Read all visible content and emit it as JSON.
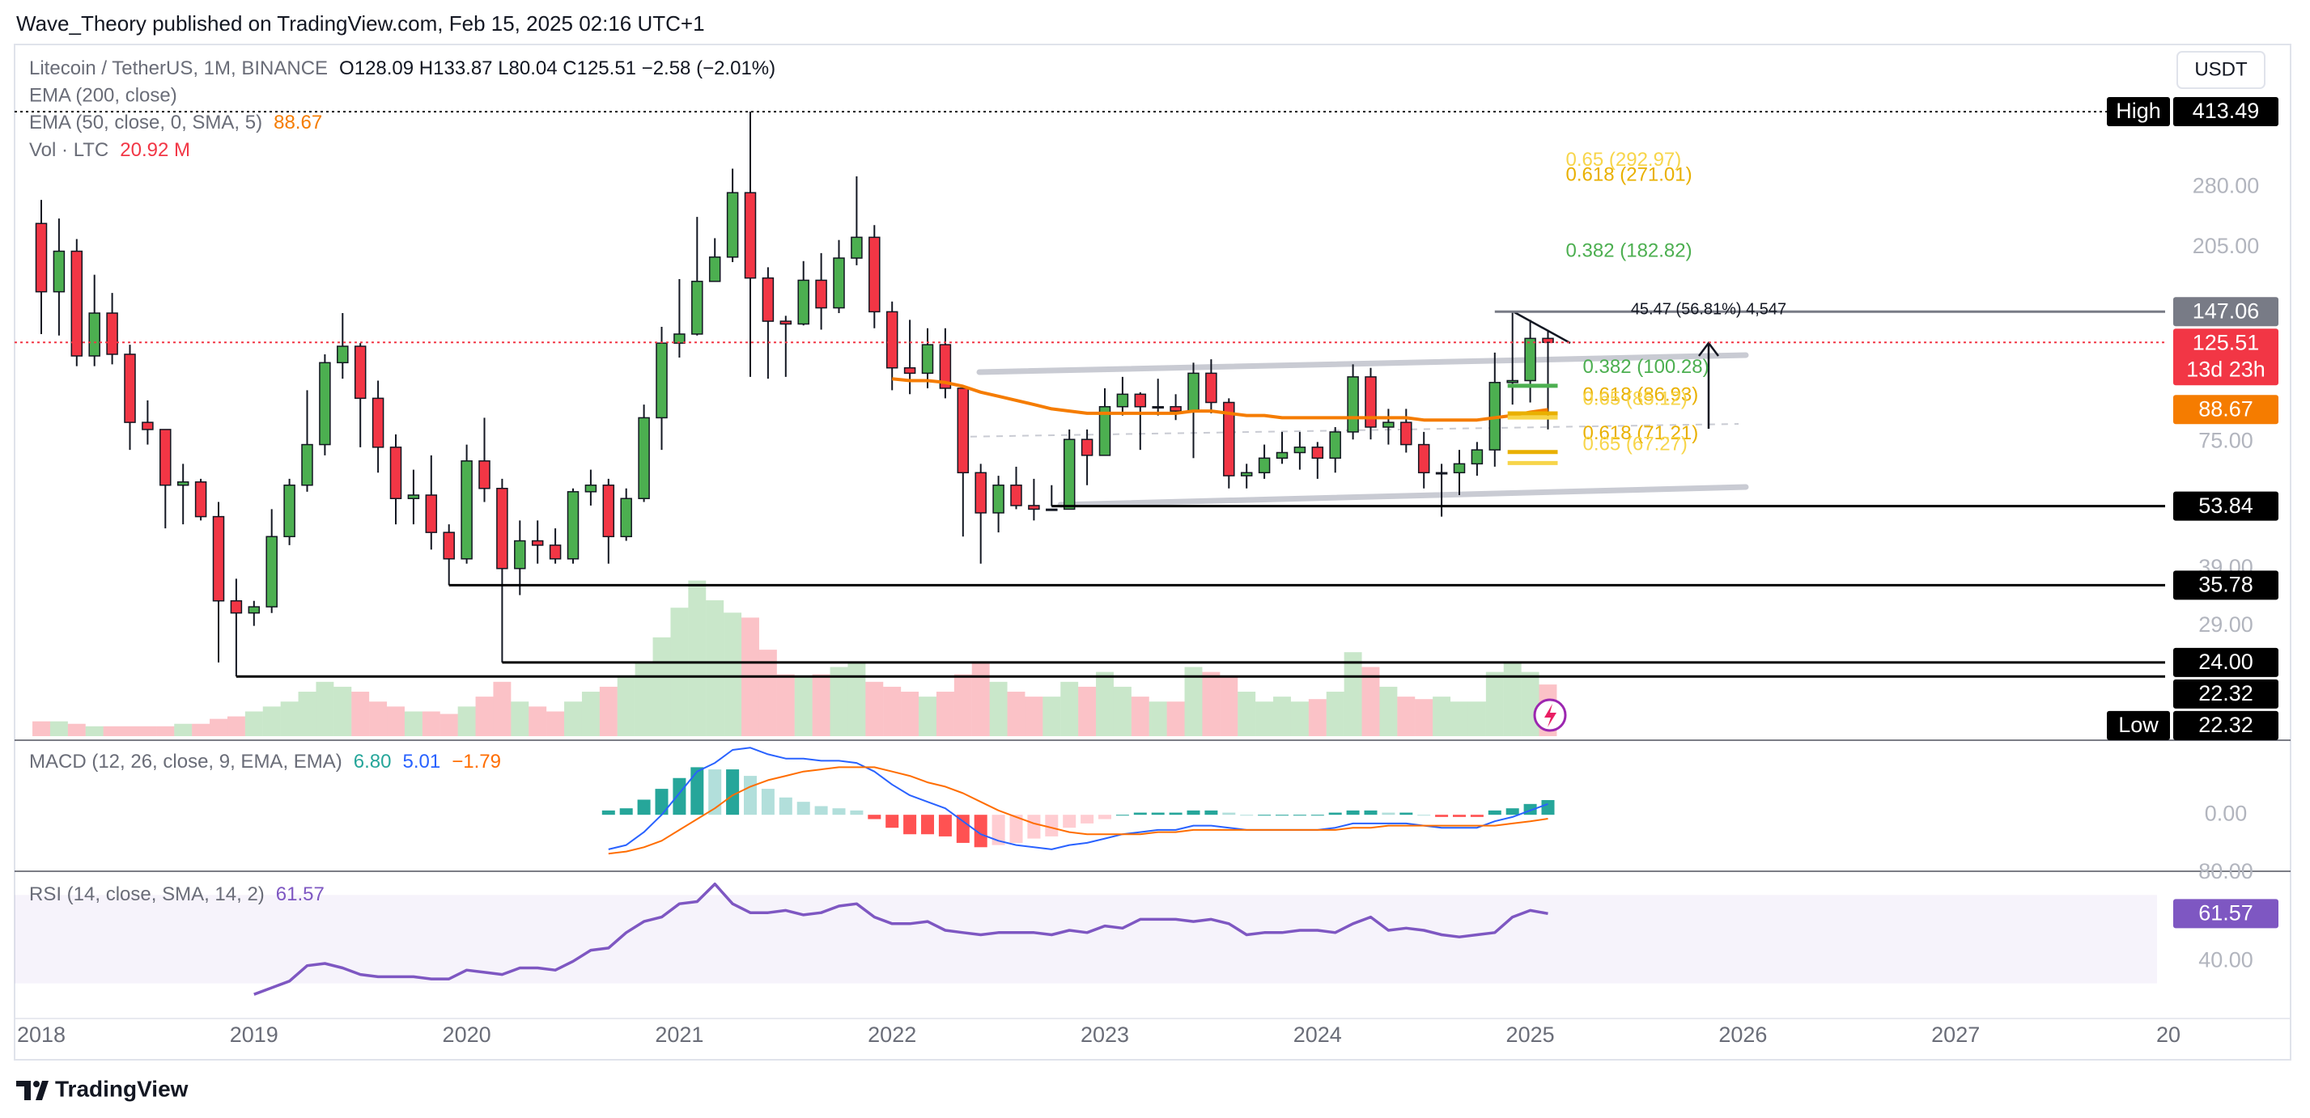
{
  "chart_data": {
    "type": "candlestick",
    "header": "Wave_Theory published on TradingView.com, Feb 15, 2025 02:16 UTC+1",
    "title": "Litecoin / TetherUS, 1M, BINANCE",
    "ohlc_text": "O128.09 H133.87 L80.04 C125.51 −2.58 (−2.01%)",
    "currency": "USDT",
    "brand": "TradingView",
    "log": true,
    "ylim": [
      16.4,
      585
    ],
    "yticks": [
      {
        "value": 280,
        "label": "280.00"
      },
      {
        "value": 205,
        "label": "205.00"
      },
      {
        "value": 75,
        "label": "75.00"
      },
      {
        "value": 39,
        "label": "39.00"
      },
      {
        "value": 29,
        "label": "29.00"
      }
    ],
    "xticks": [
      {
        "value": "2018-01",
        "label": "2018"
      },
      {
        "value": "2019-01",
        "label": "2019"
      },
      {
        "value": "2020-01",
        "label": "2020"
      },
      {
        "value": "2021-01",
        "label": "2021"
      },
      {
        "value": "2022-01",
        "label": "2022"
      },
      {
        "value": "2023-01",
        "label": "2023"
      },
      {
        "value": "2024-01",
        "label": "2024"
      },
      {
        "value": "2025-01",
        "label": "2025"
      },
      {
        "value": "2026-01",
        "label": "2026"
      },
      {
        "value": "2027-01",
        "label": "2027"
      },
      {
        "value": "2028-01",
        "label": "20"
      }
    ],
    "up_color": "#4caf50",
    "down_color": "#f23645",
    "x": [
      "2018-01",
      "2018-02",
      "2018-03",
      "2018-04",
      "2018-05",
      "2018-06",
      "2018-07",
      "2018-08",
      "2018-09",
      "2018-10",
      "2018-11",
      "2018-12",
      "2019-01",
      "2019-02",
      "2019-03",
      "2019-04",
      "2019-05",
      "2019-06",
      "2019-07",
      "2019-08",
      "2019-09",
      "2019-10",
      "2019-11",
      "2019-12",
      "2020-01",
      "2020-02",
      "2020-03",
      "2020-04",
      "2020-05",
      "2020-06",
      "2020-07",
      "2020-08",
      "2020-09",
      "2020-10",
      "2020-11",
      "2020-12",
      "2021-01",
      "2021-02",
      "2021-03",
      "2021-04",
      "2021-05",
      "2021-06",
      "2021-07",
      "2021-08",
      "2021-09",
      "2021-10",
      "2021-11",
      "2021-12",
      "2022-01",
      "2022-02",
      "2022-03",
      "2022-04",
      "2022-05",
      "2022-06",
      "2022-07",
      "2022-08",
      "2022-09",
      "2022-10",
      "2022-11",
      "2022-12",
      "2023-01",
      "2023-02",
      "2023-03",
      "2023-04",
      "2023-05",
      "2023-06",
      "2023-07",
      "2023-08",
      "2023-09",
      "2023-10",
      "2023-11",
      "2023-12",
      "2024-01",
      "2024-02",
      "2024-03",
      "2024-04",
      "2024-05",
      "2024-06",
      "2024-07",
      "2024-08",
      "2024-09",
      "2024-10",
      "2024-11",
      "2024-12",
      "2025-01",
      "2025-02"
    ],
    "open": [
      232,
      163,
      201,
      117,
      146,
      118,
      83,
      80,
      60,
      61,
      51,
      33,
      31,
      32,
      46,
      60,
      74,
      113,
      123,
      94,
      73,
      56,
      57,
      47,
      41,
      68,
      59,
      39,
      45,
      44,
      41,
      58,
      60,
      46,
      56,
      85,
      125,
      131,
      172,
      195,
      272,
      175,
      140,
      138,
      173,
      150,
      194,
      216,
      147,
      110,
      107,
      124,
      99,
      64,
      52,
      60,
      54,
      53,
      53,
      76,
      70,
      90,
      96,
      90,
      90,
      88,
      107,
      92,
      63,
      64,
      69,
      71,
      73,
      69,
      79,
      105,
      81,
      83,
      74,
      64,
      64,
      67,
      72,
      102,
      103,
      128.09
    ],
    "high": [
      262,
      238,
      214,
      178,
      162,
      124,
      93,
      80,
      67,
      62,
      55,
      37,
      33,
      53,
      62,
      98,
      118,
      146,
      125,
      103,
      78,
      65,
      70,
      49,
      74,
      85,
      62,
      50,
      50,
      48,
      59,
      65,
      62,
      59,
      91,
      136,
      174,
      240,
      215,
      308,
      413.49,
      185,
      144,
      191,
      199,
      213,
      296,
      230,
      155,
      141,
      135,
      135,
      100,
      67,
      63,
      66,
      62,
      60,
      80,
      80,
      99,
      105,
      97,
      104,
      96,
      113,
      115,
      94,
      67,
      74,
      79,
      79,
      75,
      81,
      112,
      110,
      89,
      89,
      79,
      67,
      72,
      75,
      119,
      147.06,
      141,
      133.87
    ],
    "low": [
      131,
      130,
      111,
      111,
      112,
      72,
      74,
      48,
      49,
      50,
      24,
      22.32,
      29,
      31,
      44,
      58,
      70,
      104,
      73,
      64,
      49,
      49,
      43,
      35.78,
      40,
      55,
      24,
      34,
      40,
      40,
      40,
      54,
      40,
      45,
      55,
      72,
      116,
      130,
      172,
      190,
      105,
      104,
      105,
      137,
      134,
      146,
      187,
      135,
      98,
      96,
      99,
      94,
      46,
      40,
      47,
      53,
      50,
      53.84,
      53,
      60,
      70,
      86,
      72,
      86,
      84,
      69,
      87,
      59,
      59,
      62,
      67,
      65,
      62,
      64,
      76,
      76,
      74,
      71,
      59,
      51,
      57,
      63,
      66,
      91,
      92,
      80.04
    ],
    "close": [
      163,
      201,
      117,
      146,
      118,
      83,
      80,
      60,
      61,
      51,
      33,
      31,
      32,
      46,
      60,
      74,
      113,
      123,
      94,
      73,
      56,
      57,
      47,
      41,
      68,
      59,
      39,
      45,
      44,
      41,
      58,
      60,
      46,
      56,
      85,
      125,
      131,
      172,
      195,
      272,
      175,
      140,
      138,
      173,
      150,
      194,
      216,
      147,
      110,
      107,
      124,
      99,
      64,
      52,
      60,
      54,
      53,
      53,
      76,
      70,
      90,
      96,
      90,
      90,
      88,
      107,
      92,
      63,
      64,
      69,
      71,
      73,
      69,
      79,
      105,
      81,
      83,
      74,
      64,
      64,
      67,
      72,
      102,
      103,
      128.09,
      125.51
    ],
    "volume": [
      6,
      6,
      5,
      4,
      4,
      4,
      4,
      4,
      5,
      5,
      7,
      8,
      10,
      12,
      14,
      18,
      22,
      20,
      18,
      14,
      12,
      10,
      10,
      9,
      12,
      16,
      22,
      14,
      12,
      10,
      14,
      18,
      20,
      24,
      30,
      40,
      52,
      63,
      55,
      50,
      48,
      35,
      25,
      24,
      25,
      28,
      30,
      22,
      20,
      18,
      16,
      18,
      25,
      30,
      22,
      18,
      16,
      16,
      22,
      20,
      26,
      20,
      16,
      14,
      14,
      28,
      26,
      24,
      18,
      14,
      16,
      14,
      15,
      18,
      34,
      28,
      20,
      16,
      15,
      16,
      14,
      14,
      26,
      30,
      26,
      20.92
    ],
    "volume_ylim": [
      0,
      280
    ],
    "ema50": [
      null,
      null,
      null,
      null,
      null,
      null,
      null,
      null,
      null,
      null,
      null,
      null,
      null,
      null,
      null,
      null,
      null,
      null,
      null,
      null,
      null,
      null,
      null,
      null,
      null,
      null,
      null,
      null,
      null,
      null,
      null,
      null,
      null,
      null,
      null,
      null,
      null,
      null,
      null,
      null,
      null,
      null,
      null,
      null,
      null,
      null,
      null,
      null,
      104,
      103,
      103,
      102,
      100,
      97,
      95,
      93,
      91,
      89,
      88,
      87,
      87,
      87,
      87,
      87,
      87,
      88,
      88,
      87,
      86,
      86,
      85,
      85,
      85,
      85,
      85,
      85,
      85,
      85,
      84,
      84,
      84,
      84,
      85,
      86,
      87.5,
      88.67
    ],
    "ema50_color": "#f57c00",
    "ema200_name": "EMA (200, close)",
    "ema50_name": "EMA (50, close, 0, SMA, 5)",
    "volume_name": "Vol · LTC",
    "volume_text": "20.92 M",
    "levels": [
      {
        "value": 413.49,
        "tag": "High",
        "color": "#000000",
        "style": "dotted"
      },
      {
        "value": 147.06,
        "color": "#787b86",
        "style": "solid",
        "from": "2024-11"
      },
      {
        "value": 125.51,
        "sub": "13d 23h",
        "color": "#f23645",
        "style": "dotted"
      },
      {
        "value": 88.67,
        "color": "#f57c00"
      },
      {
        "value": 53.84,
        "color": "#000000",
        "style": "solid",
        "from": "2022-10"
      },
      {
        "value": 35.78,
        "color": "#000000",
        "style": "solid",
        "from": "2019-12"
      },
      {
        "value": 24,
        "label": "24.00",
        "color": "#000000",
        "style": "solid",
        "from": "2020-03"
      },
      {
        "value": 22.32,
        "color": "#000000",
        "style": "solid",
        "from": "2018-12"
      },
      {
        "value": 22.32,
        "tag": "Low",
        "color": "#000000"
      }
    ],
    "fibs": [
      {
        "value": 292.97,
        "label": "0.65 (292.97)",
        "color": "#f7d54a"
      },
      {
        "value": 271.01,
        "label": "0.618 (271.01)",
        "color": "#e9b000"
      },
      {
        "value": 182.82,
        "label": "0.382 (182.82)",
        "color": "#4caf50"
      },
      {
        "value": 100.28,
        "label": "0.382 (100.28)",
        "color": "#4caf50"
      },
      {
        "value": 86.93,
        "label": "0.618 (86.93)",
        "color": "#e9b000"
      },
      {
        "value": 85.12,
        "label": "0.65 (85.12)",
        "color": "#f7d54a"
      },
      {
        "value": 71.21,
        "label": "0.618 (71.21)",
        "color": "#e9b000"
      },
      {
        "value": 67.27,
        "label": "0.65 (67.27)",
        "color": "#f7d54a"
      }
    ],
    "measure": "45.47 (56.81%) 4,547",
    "macd": {
      "name": "MACD (12, 26, close, 9, EMA, EMA)",
      "texts": [
        {
          "text": "6.80",
          "color": "#26a69a"
        },
        {
          "text": "5.01",
          "color": "#2962ff"
        },
        {
          "text": "−1.79",
          "color": "#ff6d00"
        }
      ],
      "ylim": [
        -25,
        33
      ],
      "yticks": [
        {
          "value": 0,
          "label": "0.00"
        }
      ],
      "macd_color": "#2962ff",
      "signal_color": "#ff6d00",
      "hist": [
        null,
        null,
        null,
        null,
        null,
        null,
        null,
        null,
        null,
        null,
        null,
        null,
        null,
        null,
        null,
        null,
        null,
        null,
        null,
        null,
        null,
        null,
        null,
        null,
        null,
        null,
        null,
        null,
        null,
        null,
        null,
        null,
        2,
        3,
        7,
        12,
        17,
        22,
        21,
        21,
        18,
        12,
        8,
        6,
        4,
        3,
        2,
        -2,
        -6,
        -9,
        -9,
        -10,
        -13,
        -15,
        -14,
        -13,
        -11,
        -10,
        -6,
        -4,
        -2,
        0,
        1,
        1,
        1,
        2,
        2,
        1,
        0,
        0,
        0,
        0,
        0,
        1,
        2,
        2,
        1,
        1,
        0,
        -1,
        -1,
        -1,
        2,
        3,
        5,
        6.8
      ],
      "macd": [
        null,
        null,
        null,
        null,
        null,
        null,
        null,
        null,
        null,
        null,
        null,
        null,
        null,
        null,
        null,
        null,
        null,
        null,
        null,
        null,
        null,
        null,
        null,
        null,
        null,
        null,
        null,
        null,
        null,
        null,
        null,
        null,
        -16,
        -14,
        -8,
        0,
        10,
        20,
        24,
        30,
        31,
        28,
        26,
        26,
        25,
        25,
        24,
        20,
        14,
        9,
        6,
        3,
        -3,
        -9,
        -12,
        -14,
        -15,
        -16,
        -14,
        -13,
        -11,
        -9,
        -8,
        -7,
        -7,
        -5,
        -5,
        -6,
        -7,
        -7,
        -7,
        -7,
        -7,
        -6,
        -4,
        -4,
        -4,
        -4,
        -5,
        -6,
        -6,
        -6,
        -3,
        -1,
        2,
        5.01
      ],
      "signal": [
        null,
        null,
        null,
        null,
        null,
        null,
        null,
        null,
        null,
        null,
        null,
        null,
        null,
        null,
        null,
        null,
        null,
        null,
        null,
        null,
        null,
        null,
        null,
        null,
        null,
        null,
        null,
        null,
        null,
        null,
        null,
        null,
        -18,
        -17,
        -15,
        -12,
        -7,
        -2,
        3,
        9,
        13,
        16,
        18,
        20,
        21,
        22,
        22,
        22,
        20,
        18,
        15,
        13,
        10,
        6,
        2,
        -1,
        -4,
        -6,
        -8,
        -9,
        -9,
        -9,
        -9,
        -8,
        -8,
        -7,
        -7,
        -7,
        -7,
        -7,
        -7,
        -7,
        -7,
        -7,
        -6,
        -6,
        -5,
        -5,
        -5,
        -5,
        -5,
        -5,
        -5,
        -4,
        -3,
        -1.79
      ]
    },
    "rsi": {
      "name": "RSI (14, close, SMA, 14, 2)",
      "color": "#7e57c2",
      "ylim": [
        15.2,
        80
      ],
      "yticks": [
        {
          "value": 80,
          "label": "80.00"
        },
        {
          "value": 40,
          "label": "40.00"
        }
      ],
      "band": [
        30,
        70
      ],
      "values": [
        null,
        null,
        null,
        null,
        null,
        null,
        null,
        null,
        null,
        null,
        null,
        null,
        25,
        28,
        31,
        38,
        39,
        37,
        34,
        33,
        33,
        33,
        32,
        32,
        36,
        35,
        34,
        37,
        37,
        36,
        40,
        45,
        46,
        53,
        58,
        60,
        66,
        67,
        75,
        66,
        62,
        62,
        63,
        61,
        62,
        65,
        66,
        60,
        57,
        57,
        58,
        54,
        53,
        52,
        53,
        53,
        53,
        52,
        54,
        53,
        56,
        55,
        59,
        59,
        59,
        58,
        59,
        57,
        52,
        53,
        53,
        54,
        54,
        53,
        57,
        60,
        54,
        55,
        54,
        52,
        51,
        52,
        53,
        60,
        63,
        61.57
      ]
    }
  }
}
